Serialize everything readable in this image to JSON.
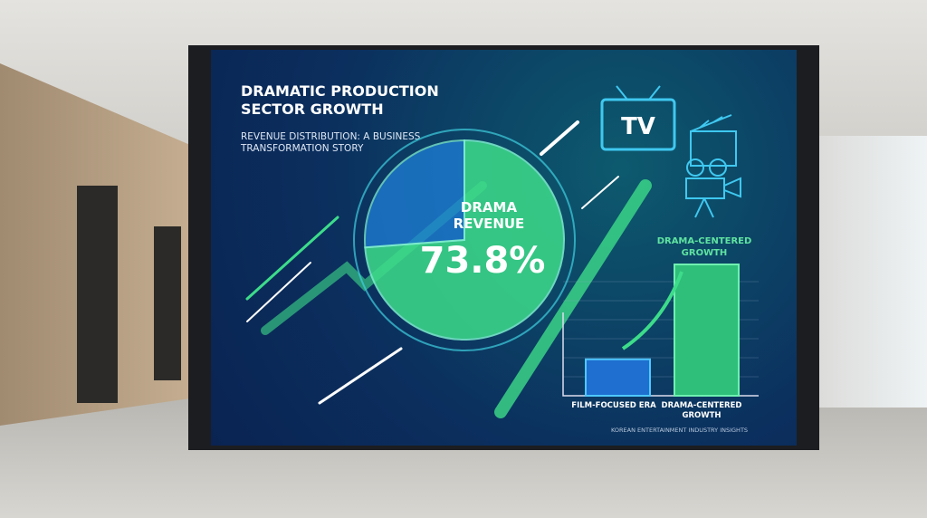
{
  "title": "DRAMATIC PRODUCTION SECTOR GROWTH",
  "subtitle": "REVENUE DISTRIBUTION: A BUSINESS TRANSFORMATION STORY",
  "tv_label": "TV",
  "footer": "KOREAN ENTERTAINMENT INDUSTRY INSIGHTS",
  "icons": [
    "tv-icon",
    "clapperboard-icon",
    "movie-camera-icon",
    "growth-arrow-icon"
  ],
  "colors": {
    "drama": "#3ddc8a",
    "other": "#1e7fd8",
    "background": "#0b2f5e"
  },
  "chart_data": [
    {
      "type": "pie",
      "slices": [
        {
          "label": "DRAMA REVENUE",
          "value": 73.8,
          "display": "73.8%"
        },
        {
          "label": "",
          "value": 26.2
        }
      ]
    },
    {
      "type": "bar",
      "title": "DRAMA-CENTERED GROWTH",
      "categories": [
        "FILM-FOCUSED ERA",
        "DRAMA-CENTERED GROWTH"
      ],
      "values": [
        1,
        3.6
      ],
      "grid": true
    }
  ]
}
